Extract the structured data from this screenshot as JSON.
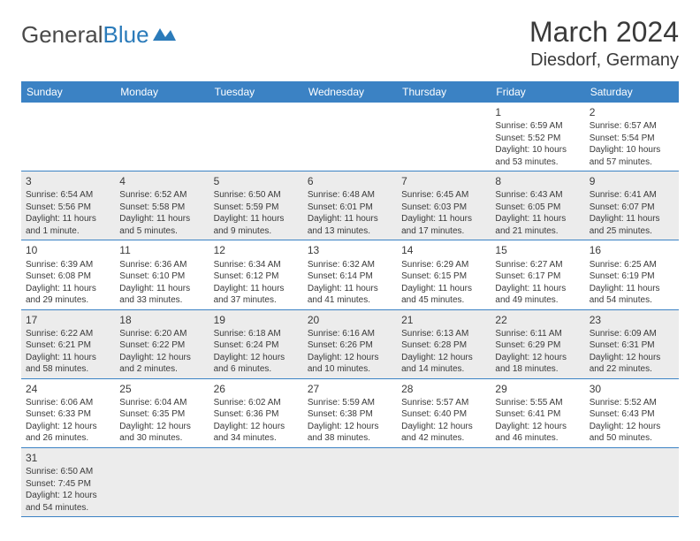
{
  "logo": {
    "text1": "General",
    "text2": "Blue"
  },
  "title": "March 2024",
  "location": "Diesdorf, Germany",
  "dayHeaders": [
    "Sunday",
    "Monday",
    "Tuesday",
    "Wednesday",
    "Thursday",
    "Friday",
    "Saturday"
  ],
  "colors": {
    "headerBg": "#3b82c4",
    "headerText": "#ffffff",
    "altRowBg": "#ececec",
    "borderColor": "#3b82c4",
    "textColor": "#3a3a3a"
  },
  "weeks": [
    [
      {
        "n": "",
        "sr": "",
        "ss": "",
        "d1": "",
        "d2": ""
      },
      {
        "n": "",
        "sr": "",
        "ss": "",
        "d1": "",
        "d2": ""
      },
      {
        "n": "",
        "sr": "",
        "ss": "",
        "d1": "",
        "d2": ""
      },
      {
        "n": "",
        "sr": "",
        "ss": "",
        "d1": "",
        "d2": ""
      },
      {
        "n": "",
        "sr": "",
        "ss": "",
        "d1": "",
        "d2": ""
      },
      {
        "n": "1",
        "sr": "Sunrise: 6:59 AM",
        "ss": "Sunset: 5:52 PM",
        "d1": "Daylight: 10 hours",
        "d2": "and 53 minutes."
      },
      {
        "n": "2",
        "sr": "Sunrise: 6:57 AM",
        "ss": "Sunset: 5:54 PM",
        "d1": "Daylight: 10 hours",
        "d2": "and 57 minutes."
      }
    ],
    [
      {
        "n": "3",
        "sr": "Sunrise: 6:54 AM",
        "ss": "Sunset: 5:56 PM",
        "d1": "Daylight: 11 hours",
        "d2": "and 1 minute."
      },
      {
        "n": "4",
        "sr": "Sunrise: 6:52 AM",
        "ss": "Sunset: 5:58 PM",
        "d1": "Daylight: 11 hours",
        "d2": "and 5 minutes."
      },
      {
        "n": "5",
        "sr": "Sunrise: 6:50 AM",
        "ss": "Sunset: 5:59 PM",
        "d1": "Daylight: 11 hours",
        "d2": "and 9 minutes."
      },
      {
        "n": "6",
        "sr": "Sunrise: 6:48 AM",
        "ss": "Sunset: 6:01 PM",
        "d1": "Daylight: 11 hours",
        "d2": "and 13 minutes."
      },
      {
        "n": "7",
        "sr": "Sunrise: 6:45 AM",
        "ss": "Sunset: 6:03 PM",
        "d1": "Daylight: 11 hours",
        "d2": "and 17 minutes."
      },
      {
        "n": "8",
        "sr": "Sunrise: 6:43 AM",
        "ss": "Sunset: 6:05 PM",
        "d1": "Daylight: 11 hours",
        "d2": "and 21 minutes."
      },
      {
        "n": "9",
        "sr": "Sunrise: 6:41 AM",
        "ss": "Sunset: 6:07 PM",
        "d1": "Daylight: 11 hours",
        "d2": "and 25 minutes."
      }
    ],
    [
      {
        "n": "10",
        "sr": "Sunrise: 6:39 AM",
        "ss": "Sunset: 6:08 PM",
        "d1": "Daylight: 11 hours",
        "d2": "and 29 minutes."
      },
      {
        "n": "11",
        "sr": "Sunrise: 6:36 AM",
        "ss": "Sunset: 6:10 PM",
        "d1": "Daylight: 11 hours",
        "d2": "and 33 minutes."
      },
      {
        "n": "12",
        "sr": "Sunrise: 6:34 AM",
        "ss": "Sunset: 6:12 PM",
        "d1": "Daylight: 11 hours",
        "d2": "and 37 minutes."
      },
      {
        "n": "13",
        "sr": "Sunrise: 6:32 AM",
        "ss": "Sunset: 6:14 PM",
        "d1": "Daylight: 11 hours",
        "d2": "and 41 minutes."
      },
      {
        "n": "14",
        "sr": "Sunrise: 6:29 AM",
        "ss": "Sunset: 6:15 PM",
        "d1": "Daylight: 11 hours",
        "d2": "and 45 minutes."
      },
      {
        "n": "15",
        "sr": "Sunrise: 6:27 AM",
        "ss": "Sunset: 6:17 PM",
        "d1": "Daylight: 11 hours",
        "d2": "and 49 minutes."
      },
      {
        "n": "16",
        "sr": "Sunrise: 6:25 AM",
        "ss": "Sunset: 6:19 PM",
        "d1": "Daylight: 11 hours",
        "d2": "and 54 minutes."
      }
    ],
    [
      {
        "n": "17",
        "sr": "Sunrise: 6:22 AM",
        "ss": "Sunset: 6:21 PM",
        "d1": "Daylight: 11 hours",
        "d2": "and 58 minutes."
      },
      {
        "n": "18",
        "sr": "Sunrise: 6:20 AM",
        "ss": "Sunset: 6:22 PM",
        "d1": "Daylight: 12 hours",
        "d2": "and 2 minutes."
      },
      {
        "n": "19",
        "sr": "Sunrise: 6:18 AM",
        "ss": "Sunset: 6:24 PM",
        "d1": "Daylight: 12 hours",
        "d2": "and 6 minutes."
      },
      {
        "n": "20",
        "sr": "Sunrise: 6:16 AM",
        "ss": "Sunset: 6:26 PM",
        "d1": "Daylight: 12 hours",
        "d2": "and 10 minutes."
      },
      {
        "n": "21",
        "sr": "Sunrise: 6:13 AM",
        "ss": "Sunset: 6:28 PM",
        "d1": "Daylight: 12 hours",
        "d2": "and 14 minutes."
      },
      {
        "n": "22",
        "sr": "Sunrise: 6:11 AM",
        "ss": "Sunset: 6:29 PM",
        "d1": "Daylight: 12 hours",
        "d2": "and 18 minutes."
      },
      {
        "n": "23",
        "sr": "Sunrise: 6:09 AM",
        "ss": "Sunset: 6:31 PM",
        "d1": "Daylight: 12 hours",
        "d2": "and 22 minutes."
      }
    ],
    [
      {
        "n": "24",
        "sr": "Sunrise: 6:06 AM",
        "ss": "Sunset: 6:33 PM",
        "d1": "Daylight: 12 hours",
        "d2": "and 26 minutes."
      },
      {
        "n": "25",
        "sr": "Sunrise: 6:04 AM",
        "ss": "Sunset: 6:35 PM",
        "d1": "Daylight: 12 hours",
        "d2": "and 30 minutes."
      },
      {
        "n": "26",
        "sr": "Sunrise: 6:02 AM",
        "ss": "Sunset: 6:36 PM",
        "d1": "Daylight: 12 hours",
        "d2": "and 34 minutes."
      },
      {
        "n": "27",
        "sr": "Sunrise: 5:59 AM",
        "ss": "Sunset: 6:38 PM",
        "d1": "Daylight: 12 hours",
        "d2": "and 38 minutes."
      },
      {
        "n": "28",
        "sr": "Sunrise: 5:57 AM",
        "ss": "Sunset: 6:40 PM",
        "d1": "Daylight: 12 hours",
        "d2": "and 42 minutes."
      },
      {
        "n": "29",
        "sr": "Sunrise: 5:55 AM",
        "ss": "Sunset: 6:41 PM",
        "d1": "Daylight: 12 hours",
        "d2": "and 46 minutes."
      },
      {
        "n": "30",
        "sr": "Sunrise: 5:52 AM",
        "ss": "Sunset: 6:43 PM",
        "d1": "Daylight: 12 hours",
        "d2": "and 50 minutes."
      }
    ],
    [
      {
        "n": "31",
        "sr": "Sunrise: 6:50 AM",
        "ss": "Sunset: 7:45 PM",
        "d1": "Daylight: 12 hours",
        "d2": "and 54 minutes."
      },
      {
        "n": "",
        "sr": "",
        "ss": "",
        "d1": "",
        "d2": ""
      },
      {
        "n": "",
        "sr": "",
        "ss": "",
        "d1": "",
        "d2": ""
      },
      {
        "n": "",
        "sr": "",
        "ss": "",
        "d1": "",
        "d2": ""
      },
      {
        "n": "",
        "sr": "",
        "ss": "",
        "d1": "",
        "d2": ""
      },
      {
        "n": "",
        "sr": "",
        "ss": "",
        "d1": "",
        "d2": ""
      },
      {
        "n": "",
        "sr": "",
        "ss": "",
        "d1": "",
        "d2": ""
      }
    ]
  ]
}
